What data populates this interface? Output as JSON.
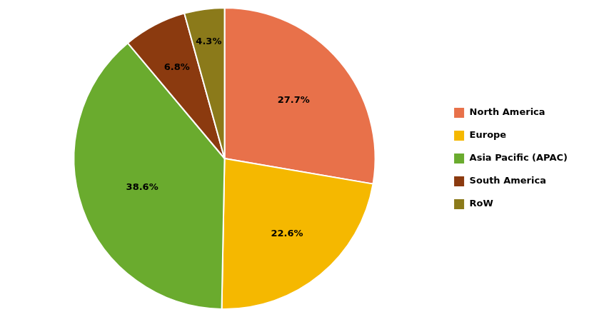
{
  "chart_data": {
    "type": "pie",
    "categories": [
      "North America",
      "Europe",
      "Asia Pacific (APAC)",
      "South America",
      "RoW"
    ],
    "values": [
      27.7,
      22.6,
      38.6,
      6.8,
      4.3
    ],
    "value_labels": [
      "27.7%",
      "22.6%",
      "38.6%",
      "6.8%",
      "4.3%"
    ],
    "colors": [
      "#E8714A",
      "#F5B800",
      "#6AAB2E",
      "#8B3A0F",
      "#8B7A1A"
    ],
    "legend": "right",
    "data_labels": true
  }
}
